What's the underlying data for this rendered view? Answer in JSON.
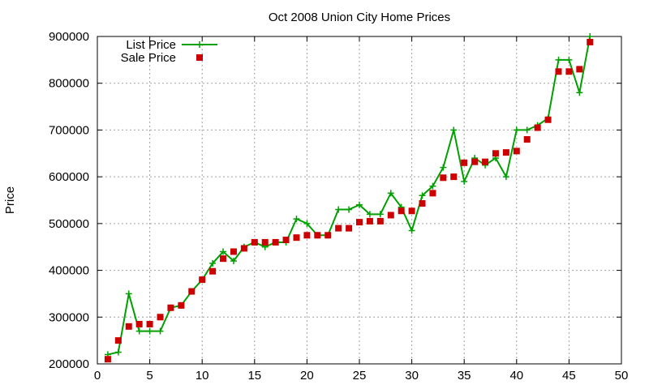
{
  "chart_data": {
    "type": "line",
    "title": "Oct 2008 Union City Home Prices",
    "xlabel": "",
    "ylabel": "Price",
    "xlim": [
      0,
      50
    ],
    "ylim": [
      200000,
      900000
    ],
    "xticks": [
      0,
      5,
      10,
      15,
      20,
      25,
      30,
      35,
      40,
      45,
      50
    ],
    "yticks": [
      200000,
      300000,
      400000,
      500000,
      600000,
      700000,
      800000,
      900000
    ],
    "grid": true,
    "legend": "top-left",
    "series": [
      {
        "name": "List Price",
        "color": "#00a000",
        "style": "line-with-plus-markers",
        "x": [
          1,
          2,
          3,
          4,
          5,
          6,
          7,
          8,
          9,
          10,
          11,
          12,
          13,
          14,
          15,
          16,
          17,
          18,
          19,
          20,
          21,
          22,
          23,
          24,
          25,
          26,
          27,
          28,
          29,
          30,
          31,
          32,
          33,
          34,
          35,
          36,
          37,
          38,
          39,
          40,
          41,
          42,
          43,
          44,
          45,
          46,
          47
        ],
        "values": [
          220000,
          225000,
          350000,
          270000,
          270000,
          270000,
          320000,
          325000,
          355000,
          380000,
          415000,
          440000,
          420000,
          450000,
          460000,
          450000,
          460000,
          460000,
          510000,
          500000,
          475000,
          475000,
          530000,
          530000,
          540000,
          520000,
          520000,
          565000,
          535000,
          485000,
          560000,
          580000,
          620000,
          700000,
          590000,
          640000,
          625000,
          640000,
          600000,
          700000,
          700000,
          710000,
          725000,
          850000,
          850000,
          780000,
          900000
        ]
      },
      {
        "name": "Sale Price",
        "color": "#cc0000",
        "style": "square-markers",
        "x": [
          1,
          2,
          3,
          4,
          5,
          6,
          7,
          8,
          9,
          10,
          11,
          12,
          13,
          14,
          15,
          16,
          17,
          18,
          19,
          20,
          21,
          22,
          23,
          24,
          25,
          26,
          27,
          28,
          29,
          30,
          31,
          32,
          33,
          34,
          35,
          36,
          37,
          38,
          39,
          40,
          41,
          42,
          43,
          44,
          45,
          46,
          47
        ],
        "values": [
          210000,
          250000,
          280000,
          285000,
          285000,
          300000,
          320000,
          325000,
          355000,
          380000,
          398000,
          425000,
          440000,
          447000,
          460000,
          460000,
          460000,
          465000,
          470000,
          475000,
          475000,
          475000,
          490000,
          490000,
          503000,
          505000,
          505000,
          518000,
          527000,
          527000,
          543000,
          565000,
          598000,
          600000,
          630000,
          632000,
          632000,
          650000,
          652000,
          655000,
          680000,
          705000,
          722000,
          825000,
          825000,
          830000,
          888000
        ]
      }
    ]
  }
}
